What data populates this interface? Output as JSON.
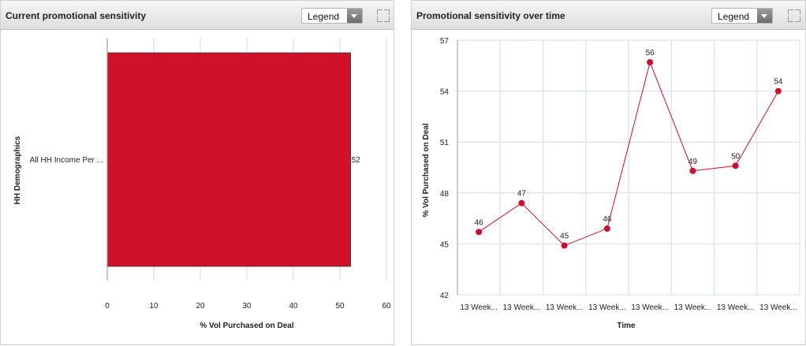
{
  "panels": [
    {
      "title": "Current promotional sensitivity",
      "legend_label": "Legend",
      "icons": [
        "chevron-down-icon",
        "expand-icon"
      ]
    },
    {
      "title": "Promotional sensitivity over time",
      "legend_label": "Legend",
      "icons": [
        "chevron-down-icon",
        "expand-icon"
      ]
    }
  ],
  "chart_data": [
    {
      "type": "bar",
      "orientation": "horizontal",
      "categories": [
        "All HH Income Per ..."
      ],
      "values": [
        52.3
      ],
      "data_labels": [
        "52"
      ],
      "xlabel": "% Vol Purchased on Deal",
      "ylabel": "HH Demographics",
      "xlim": [
        0,
        60
      ],
      "xticks": [
        0,
        10,
        20,
        30,
        40,
        50,
        60
      ],
      "grid": true,
      "colors": {
        "bar": "#d0112b",
        "grid": "#dde7f2"
      }
    },
    {
      "type": "line",
      "categories": [
        "13 Week...",
        "13 Week...",
        "13 Week...",
        "13 Week...",
        "13 Week...",
        "13 Week...",
        "13 Week...",
        "13 Week..."
      ],
      "values": [
        45.7,
        47.4,
        44.9,
        45.9,
        55.7,
        49.3,
        49.6,
        54.0
      ],
      "data_labels": [
        "46",
        "47",
        "45",
        "46",
        "56",
        "49",
        "50",
        "54"
      ],
      "xlabel": "Time",
      "ylabel": "% Vol Purchased on Deal",
      "ylim": [
        42,
        57
      ],
      "yticks": [
        42,
        45,
        48,
        51,
        54,
        57
      ],
      "grid": true,
      "colors": {
        "line": "#c8102e",
        "marker": "#c8102e",
        "grid": "#dde7f2"
      }
    }
  ]
}
